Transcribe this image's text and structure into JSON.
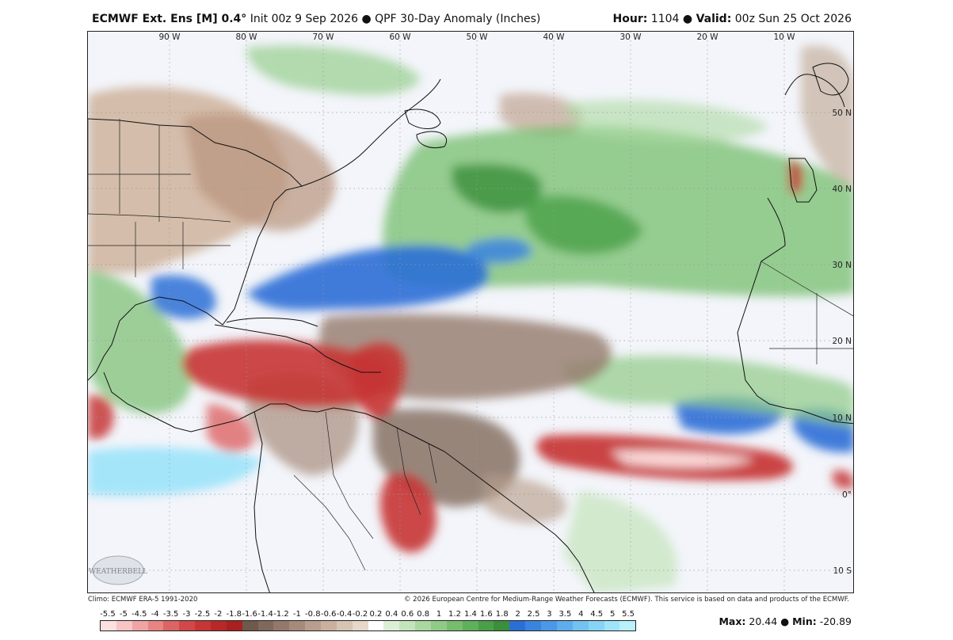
{
  "header": {
    "model": "ECMWF Ext.  Ens [M] 0.4",
    "degree": "°",
    "init": "Init 00z 9 Sep 2026",
    "bullet": "●",
    "product": "QPF 30-Day Anomaly (Inches)",
    "hour_label": "Hour:",
    "hour_value": "1104",
    "valid_label": "Valid:",
    "valid_value": "00z Sun 25 Oct 2026"
  },
  "map": {
    "lon_labels": [
      "90 W",
      "80 W",
      "70 W",
      "60 W",
      "50 W",
      "40 W",
      "30 W",
      "20 W",
      "10 W"
    ],
    "lat_labels": [
      "50 N",
      "40 N",
      "30 N",
      "20 N",
      "10 N",
      "0°",
      "10 S"
    ],
    "watermark": "WEATHERBELL"
  },
  "footer": {
    "climo": "Climo: ECMWF ERA-5 1991-2020",
    "copyright": "© 2026 European Centre for Medium-Range Weather Forecasts (ECMWF). This service is based on data and products of the ECMWF."
  },
  "colorbar": {
    "labels": [
      "-5.5",
      "-5",
      "-4.5",
      "-4",
      "-3.5",
      "-3",
      "-2.5",
      "-2",
      "-1.8",
      "-1.6",
      "-1.4",
      "-1.2",
      "-1",
      "-0.8",
      "-0.6",
      "-0.4",
      "-0.2",
      "0.2",
      "0.4",
      "0.6",
      "0.8",
      "1",
      "1.2",
      "1.4",
      "1.6",
      "1.8",
      "2",
      "2.5",
      "3",
      "3.5",
      "4",
      "4.5",
      "5",
      "5.5"
    ],
    "colors": [
      "#fde0e0",
      "#f8c4c4",
      "#f0a4a4",
      "#e88484",
      "#dd6464",
      "#d24848",
      "#c73535",
      "#b82828",
      "#a82020",
      "#6e5a4a",
      "#80695a",
      "#93796a",
      "#a68b7a",
      "#b89e8c",
      "#c9b19e",
      "#d8c4b2",
      "#e6d7c8",
      "#ffffff",
      "#dcefd6",
      "#c4e4bb",
      "#aad8a0",
      "#8fcb86",
      "#76be6e",
      "#5fb05a",
      "#4aa048",
      "#3a8f3a",
      "#2b6fd6",
      "#3a84e0",
      "#4c98e8",
      "#5eaeee",
      "#72c2f2",
      "#88d4f6",
      "#a0e4fa",
      "#b8f0fc"
    ]
  },
  "stats": {
    "max_label": "Max:",
    "max_value": "20.44",
    "bullet": "●",
    "min_label": "Min:",
    "min_value": "-20.89"
  }
}
